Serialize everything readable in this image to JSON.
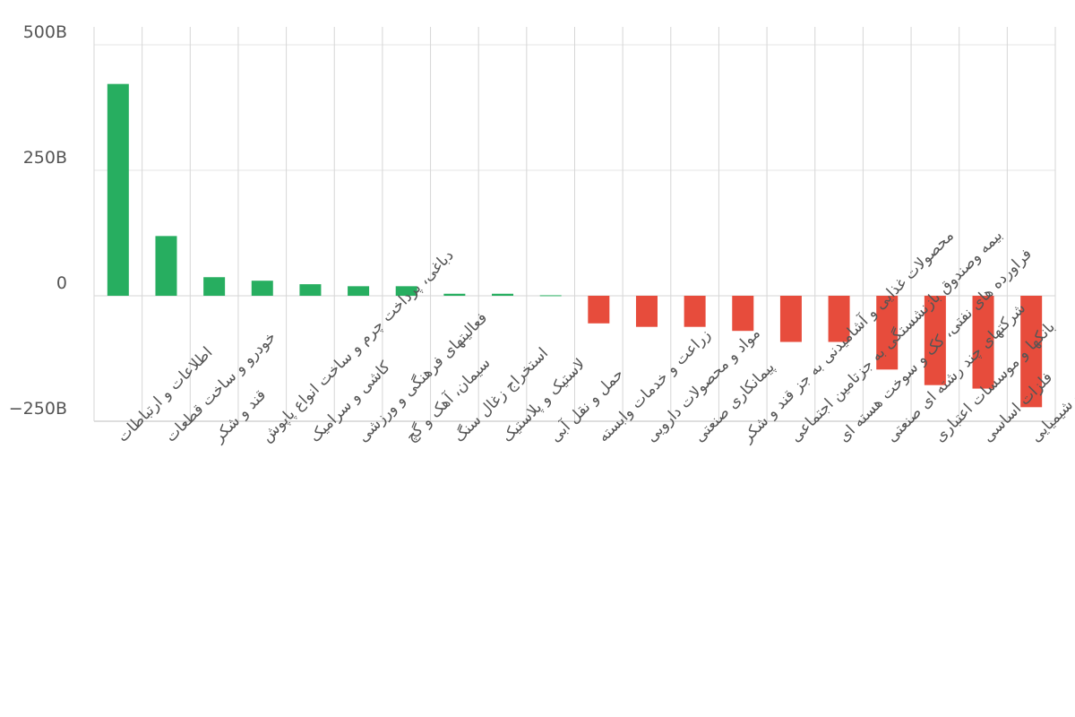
{
  "colors": {
    "positive": "#27ae60",
    "negative": "#e74c3c",
    "grid": "#d6d6d6",
    "text": "#555555"
  },
  "chart_data": {
    "type": "bar",
    "title": "",
    "xlabel": "",
    "ylabel": "",
    "ylim": [
      -250,
      500
    ],
    "y_unit": "B",
    "yticks": [
      {
        "value": 500,
        "label": "500B"
      },
      {
        "value": 250,
        "label": "250B"
      },
      {
        "value": 0,
        "label": "0"
      },
      {
        "value": -250,
        "label": "−250B"
      }
    ],
    "grid": true,
    "legend": "none",
    "categories": [
      "اطلاعات و ارتباطات",
      "خودرو و ساخت قطعات",
      "قند و شکر",
      "دباغی، پرداخت چرم و ساخت انواع پاپوش",
      "کاشی و سرامیک",
      "فعالیتهای فرهنگی و ورزشی",
      "سیمان، آهک و گچ",
      "استخراج زغال سنگ",
      "لاستیک و پلاستیک",
      "حمل و نقل آبی",
      "زراعت و خدمات وابسته",
      "مواد و محصولات دارویی",
      "پیمانکاری صنعتی",
      "محصولات غذایی و آشامیدنی به جز قند و شکر",
      "بیمه وصندوق بازنشستگی به جزتامین اجتماعی",
      "فراورده های نفتی، کک و سوخت هسته ای",
      "شرکتهای چند رشته ای صنعتی",
      "بانکها و موسسات اعتباری",
      "فلزات اساسی",
      "محصولات شیمیایی"
    ],
    "values": [
      422,
      119,
      37,
      30,
      23,
      19,
      19,
      4,
      4,
      1,
      -55,
      -62,
      -62,
      -70,
      -92,
      -92,
      -147,
      -178,
      -185,
      -222
    ]
  }
}
